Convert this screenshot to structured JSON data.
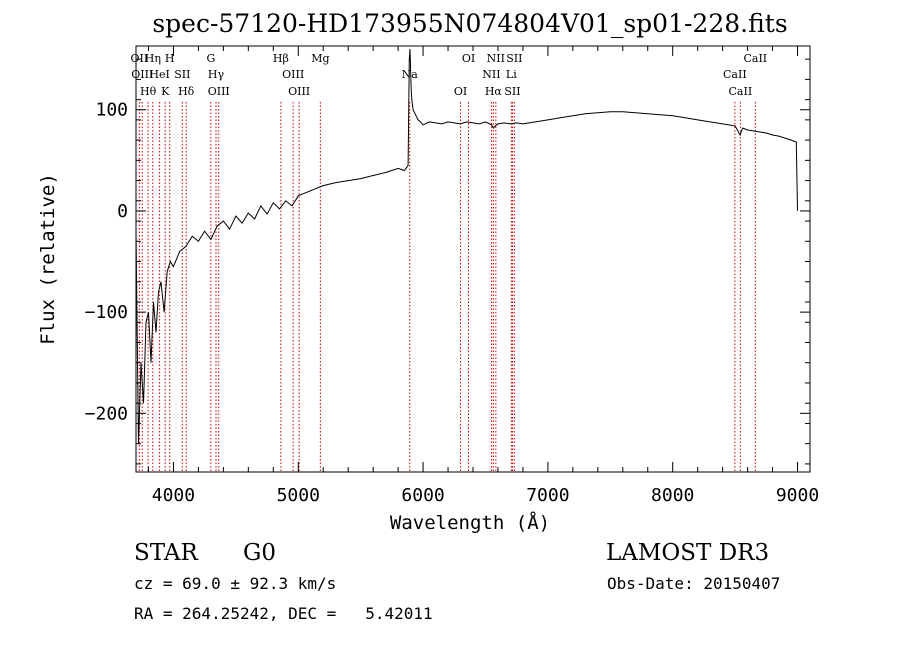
{
  "chart_data": {
    "type": "line",
    "title": "spec-57120-HD173955N074804V01_sp01-228.fits",
    "xlabel": "Wavelength (Å)",
    "ylabel": "Flux (relative)",
    "xlim": [
      3700,
      9100
    ],
    "ylim": [
      -258,
      163
    ],
    "x_ticks": [
      4000,
      5000,
      6000,
      7000,
      8000,
      9000
    ],
    "y_ticks": [
      -200,
      -100,
      0,
      100
    ],
    "grid": false,
    "series": [
      {
        "x": [
          3700,
          3720,
          3740,
          3760,
          3780,
          3800,
          3820,
          3840,
          3860,
          3880,
          3900,
          3925,
          3950,
          3975,
          4000,
          4050,
          4100,
          4150,
          4200,
          4250,
          4300,
          4350,
          4400,
          4450,
          4500,
          4550,
          4600,
          4650,
          4700,
          4750,
          4800,
          4850,
          4900,
          4950,
          5000,
          5100,
          5200,
          5300,
          5400,
          5500,
          5600,
          5700,
          5800,
          5850,
          5880,
          5890,
          5895,
          5900,
          5905,
          5910,
          5920,
          5940,
          5960,
          5980,
          6000,
          6050,
          6100,
          6150,
          6200,
          6250,
          6300,
          6350,
          6400,
          6450,
          6500,
          6550,
          6563,
          6580,
          6600,
          6650,
          6700,
          6750,
          6800,
          6900,
          7000,
          7100,
          7200,
          7300,
          7400,
          7500,
          7600,
          7700,
          7800,
          7900,
          8000,
          8100,
          8200,
          8300,
          8400,
          8500,
          8540,
          8560,
          8600,
          8650,
          8700,
          8750,
          8800,
          8850,
          8900,
          8950,
          8990,
          9000
        ],
        "y": [
          -20,
          -230,
          -150,
          -190,
          -110,
          -100,
          -150,
          -90,
          -120,
          -80,
          -70,
          -100,
          -60,
          -50,
          -55,
          -40,
          -35,
          -25,
          -30,
          -20,
          -28,
          -15,
          -10,
          -18,
          -5,
          -12,
          -2,
          -8,
          5,
          -3,
          8,
          2,
          10,
          5,
          15,
          20,
          25,
          28,
          30,
          32,
          35,
          38,
          42,
          40,
          45,
          150,
          160,
          140,
          120,
          110,
          100,
          95,
          90,
          88,
          85,
          88,
          87,
          86,
          88,
          87,
          86,
          88,
          87,
          86,
          88,
          85,
          82,
          84,
          86,
          87,
          86,
          87,
          86,
          88,
          90,
          92,
          94,
          96,
          97,
          98,
          98,
          97,
          96,
          95,
          94,
          92,
          90,
          88,
          86,
          84,
          75,
          82,
          80,
          79,
          78,
          77,
          75,
          74,
          72,
          70,
          68,
          0
        ]
      }
    ],
    "line_annotations": [
      {
        "x": 3727,
        "label": "OII"
      },
      {
        "x": 3750,
        "label": "OIII"
      },
      {
        "x": 3797,
        "label": "Hθ"
      },
      {
        "x": 3835,
        "label": "Hη"
      },
      {
        "x": 3889,
        "label": "HeI"
      },
      {
        "x": 3934,
        "label": "K"
      },
      {
        "x": 3970,
        "label": "H"
      },
      {
        "x": 4071,
        "label": "SII"
      },
      {
        "x": 4102,
        "label": "Hδ"
      },
      {
        "x": 4300,
        "label": "G"
      },
      {
        "x": 4341,
        "label": "Hγ"
      },
      {
        "x": 4363,
        "label": "OIII"
      },
      {
        "x": 4861,
        "label": "Hβ"
      },
      {
        "x": 4959,
        "label": "OIII"
      },
      {
        "x": 5007,
        "label": "OIII"
      },
      {
        "x": 5177,
        "label": "Mg"
      },
      {
        "x": 5893,
        "label": "Na"
      },
      {
        "x": 6300,
        "label": "OI"
      },
      {
        "x": 6364,
        "label": "OI"
      },
      {
        "x": 6548,
        "label": "NII"
      },
      {
        "x": 6563,
        "label": "Hα"
      },
      {
        "x": 6583,
        "label": "NII"
      },
      {
        "x": 6707,
        "label": "Li"
      },
      {
        "x": 6716,
        "label": "SII"
      },
      {
        "x": 6731,
        "label": "SII"
      },
      {
        "x": 8498,
        "label": "CaII"
      },
      {
        "x": 8542,
        "label": "CaII"
      },
      {
        "x": 8662,
        "label": "CaII"
      }
    ]
  },
  "info": {
    "class": "STAR",
    "subclass": "G0",
    "survey": "LAMOST DR3",
    "cz": "cz = 69.0 ± 92.3 km/s",
    "obsdate": "Obs-Date: 20150407",
    "coords": "RA = 264.25242, DEC =   5.42011"
  },
  "colors": {
    "spectrum": "#000000",
    "lines": "#cc0000",
    "axes": "#000000"
  }
}
